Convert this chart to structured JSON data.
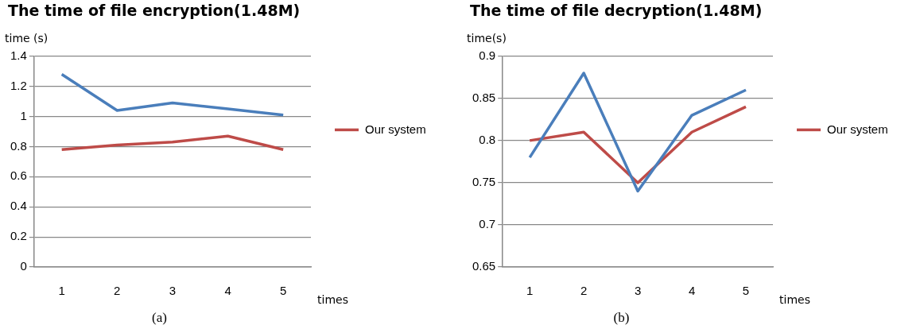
{
  "chart_data": [
    {
      "type": "line",
      "title": "The time of file encryption(1.48M)",
      "xlabel": "times",
      "ylabel": "time (s)",
      "categories": [
        "1",
        "2",
        "3",
        "4",
        "5"
      ],
      "series": [
        {
          "color": "#4a7ebb",
          "values": [
            1.28,
            1.04,
            1.09,
            1.05,
            1.01
          ]
        },
        {
          "name": "Our system",
          "color": "#be4b48",
          "values": [
            0.78,
            0.81,
            0.83,
            0.87,
            0.78
          ]
        }
      ],
      "ylim": [
        0,
        1.4
      ],
      "yticks": [
        0,
        0.2,
        0.4,
        0.6,
        0.8,
        1,
        1.2,
        1.4
      ],
      "grid": "y",
      "legend": "right",
      "marker": "none",
      "line_style": "solid",
      "annotations": [
        "(a)"
      ]
    },
    {
      "type": "line",
      "title": "The time of file decryption(1.48M)",
      "xlabel": "times",
      "ylabel": "time(s)",
      "categories": [
        "1",
        "2",
        "3",
        "4",
        "5"
      ],
      "series": [
        {
          "color": "#4a7ebb",
          "values": [
            0.78,
            0.88,
            0.74,
            0.83,
            0.86
          ]
        },
        {
          "name": "Our system",
          "color": "#be4b48",
          "values": [
            0.8,
            0.81,
            0.75,
            0.81,
            0.84
          ]
        }
      ],
      "ylim": [
        0.65,
        0.9
      ],
      "yticks": [
        0.65,
        0.7,
        0.75,
        0.8,
        0.85,
        0.9
      ],
      "grid": "y",
      "legend": "right",
      "marker": "none",
      "line_style": "solid",
      "annotations": [
        "(b)"
      ]
    }
  ]
}
